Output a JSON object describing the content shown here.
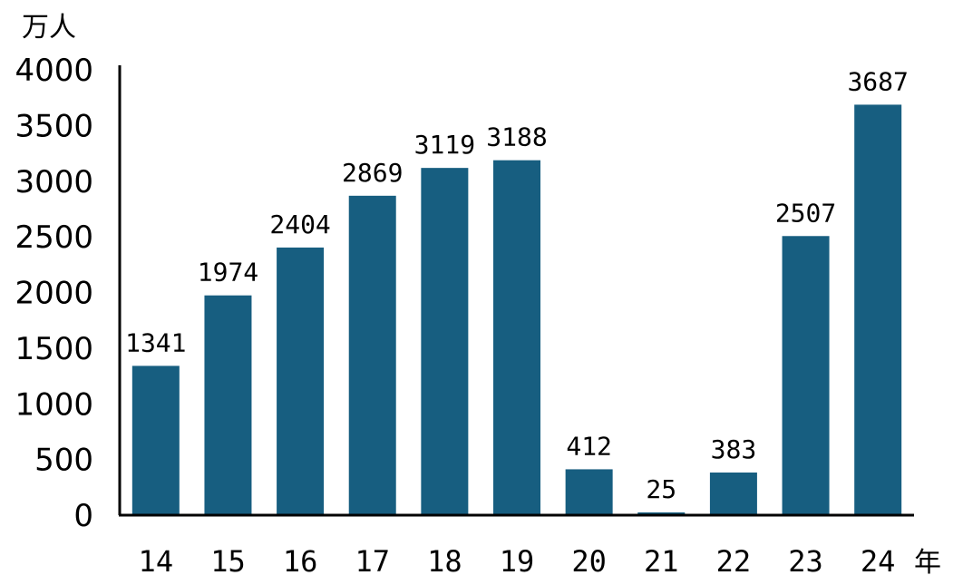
{
  "chart_data": {
    "type": "bar",
    "categories": [
      "14",
      "15",
      "16",
      "17",
      "18",
      "19",
      "20",
      "21",
      "22",
      "23",
      "24"
    ],
    "values": [
      1341,
      1974,
      2404,
      2869,
      3119,
      3188,
      412,
      25,
      383,
      2507,
      3687
    ],
    "data_labels": [
      "1341",
      "1974",
      "2404",
      "2869",
      "3119",
      "3188",
      "412",
      "25",
      "383",
      "2507",
      "3687"
    ],
    "y_unit": "万人",
    "x_unit": "年",
    "ylim": [
      0,
      4000
    ],
    "yticks": [
      "0",
      "500",
      "1000",
      "1500",
      "2000",
      "2500",
      "3000",
      "3500",
      "4000"
    ],
    "bar_color": "#175e80",
    "axis_color": "#000000",
    "grid": false,
    "legend": "none"
  }
}
